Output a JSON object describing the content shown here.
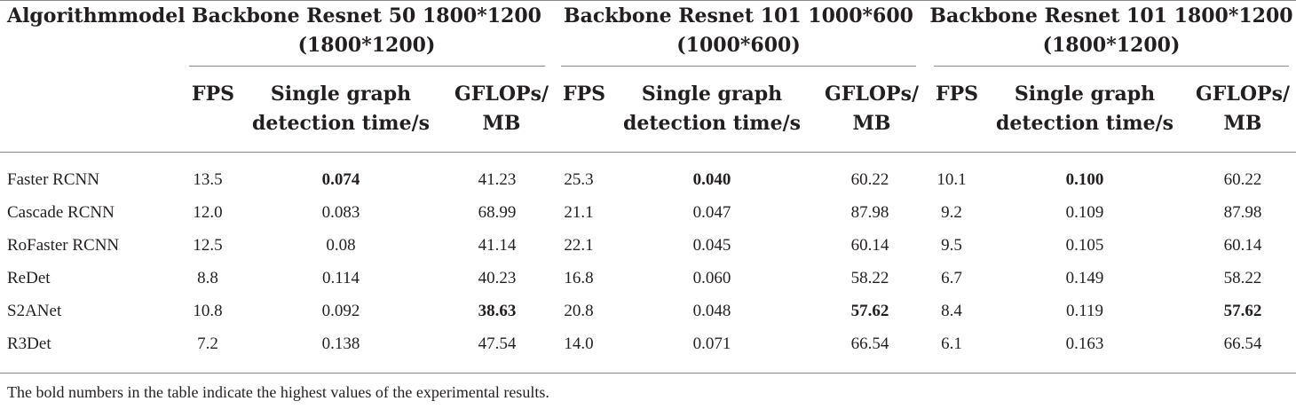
{
  "table": {
    "stub_header": "Algorithmmodel",
    "groups": [
      {
        "title_line1": "Backbone Resnet 50 1800*1200",
        "title_line2": "(1800*1200)",
        "columns": [
          "FPS",
          "Single graph detection time/s",
          "GFLOPs/ MB"
        ],
        "col_lines": [
          [
            "FPS"
          ],
          [
            "Single graph",
            "detection time/s"
          ],
          [
            "GFLOPs/",
            "MB"
          ]
        ]
      },
      {
        "title_line1": "Backbone Resnet 101 1000*600",
        "title_line2": "(1000*600)",
        "columns": [
          "FPS",
          "Single graph detection time/s",
          "GFLOPs/ MB"
        ],
        "col_lines": [
          [
            "FPS"
          ],
          [
            "Single graph",
            "detection time/s"
          ],
          [
            "GFLOPs/",
            "MB"
          ]
        ]
      },
      {
        "title_line1": "Backbone Resnet 101 1800*1200",
        "title_line2": "(1800*1200)",
        "columns": [
          "FPS",
          "Single graph detection time/s",
          "GFLOPs/ MB"
        ],
        "col_lines": [
          [
            "FPS"
          ],
          [
            "Single graph",
            "detection time/s"
          ],
          [
            "GFLOPs/",
            "MB"
          ]
        ]
      }
    ],
    "rows": [
      {
        "model": "Faster RCNN",
        "values": [
          "13.5",
          "0.074",
          "41.23",
          "25.3",
          "0.040",
          "60.22",
          "10.1",
          "0.100",
          "60.22"
        ],
        "bold": [
          1,
          4,
          7
        ]
      },
      {
        "model": "Cascade RCNN",
        "values": [
          "12.0",
          "0.083",
          "68.99",
          "21.1",
          "0.047",
          "87.98",
          "9.2",
          "0.109",
          "87.98"
        ],
        "bold": []
      },
      {
        "model": "RoFaster RCNN",
        "values": [
          "12.5",
          "0.08",
          "41.14",
          "22.1",
          "0.045",
          "60.14",
          "9.5",
          "0.105",
          "60.14"
        ],
        "bold": []
      },
      {
        "model": "ReDet",
        "values": [
          "8.8",
          "0.114",
          "40.23",
          "16.8",
          "0.060",
          "58.22",
          "6.7",
          "0.149",
          "58.22"
        ],
        "bold": []
      },
      {
        "model": "S2ANet",
        "values": [
          "10.8",
          "0.092",
          "38.63",
          "20.8",
          "0.048",
          "57.62",
          "8.4",
          "0.119",
          "57.62"
        ],
        "bold": [
          2,
          5,
          8
        ]
      },
      {
        "model": "R3Det",
        "values": [
          "7.2",
          "0.138",
          "47.54",
          "14.0",
          "0.071",
          "66.54",
          "6.1",
          "0.163",
          "66.54"
        ],
        "bold": []
      }
    ],
    "footnote": "The bold numbers in the table indicate the highest values of the experimental results."
  }
}
